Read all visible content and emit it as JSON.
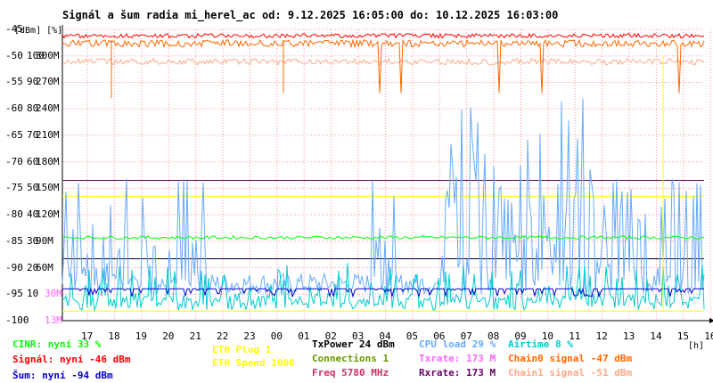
{
  "title": "Signál a šum radia mi_herel_ac od: 9.12.2025 16:05:00 do: 10.12.2025 16:03:00",
  "axis": {
    "unit_label": "[dBm] [%]",
    "y_labels_dbm": [
      "-45",
      "-50",
      "-55",
      "-60",
      "-65",
      "-70",
      "-75",
      "-80",
      "-85",
      "-90",
      "-95",
      "-100"
    ],
    "y_labels_pct": [
      "100",
      "90",
      "80",
      "70",
      "60",
      "50",
      "40",
      "30",
      "20",
      "10"
    ],
    "y_labels_rate": [
      "300M",
      "270M",
      "240M",
      "210M",
      "180M",
      "150M",
      "120M",
      "90M",
      "60M",
      "30M",
      "13M",
      "6M"
    ],
    "x_labels": [
      "17",
      "18",
      "19",
      "20",
      "21",
      "22",
      "23",
      "00",
      "01",
      "02",
      "03",
      "04",
      "05",
      "06",
      "07",
      "08",
      "09",
      "10",
      "11",
      "12",
      "13",
      "14",
      "15",
      "16"
    ],
    "x_unit": "[h]"
  },
  "legend": {
    "cinr": "CINR: nyní 33 %",
    "signal": "Signál: nyní -46 dBm",
    "noise": "Šum: nyní -94 dBm",
    "eth_plug": "ETH Plug 1",
    "eth_speed": "ETH Speed 1000",
    "txpower": "TxPower 24 dBm",
    "connections": "Connections 1",
    "freq": "Freq 5780 MHz",
    "cpu": "CPU load 29 %",
    "txrate": "Txrate: 173 M",
    "rxrate": "Rxrate: 173 M",
    "airtime": "Airtime 8 %",
    "chain0": "Chain0 signal -47 dBm",
    "chain1": "Chain1 signal -51 dBm"
  },
  "colors": {
    "cinr": "#00ff00",
    "signal": "#ff0000",
    "noise": "#0000cc",
    "eth": "#ffff00",
    "txpower": "#000000",
    "connections": "#669900",
    "freq": "#cc3366",
    "cpu": "#66aaff",
    "txrate": "#ff66ff",
    "rxrate": "#660066",
    "airtime": "#00cccc",
    "chain0": "#ff6600",
    "chain1": "#ffaa88"
  },
  "chart_data": {
    "type": "line",
    "x": [
      "17",
      "18",
      "19",
      "20",
      "21",
      "22",
      "23",
      "00",
      "01",
      "02",
      "03",
      "04",
      "05",
      "06",
      "07",
      "08",
      "09",
      "10",
      "11",
      "12",
      "13",
      "14",
      "15",
      "16"
    ],
    "ylim": [
      -100,
      -45
    ],
    "series": [
      {
        "name": "Signál",
        "values": [
          -46,
          -46,
          -46,
          -46,
          -46,
          -46,
          -46,
          -46,
          -46,
          -46,
          -46,
          -46,
          -46,
          -46,
          -46,
          -46,
          -46,
          -46,
          -46,
          -46,
          -46,
          -46,
          -46,
          -46
        ]
      },
      {
        "name": "Šum",
        "values": [
          -94,
          -94,
          -94,
          -94,
          -94,
          -94,
          -94,
          -94,
          -94,
          -94,
          -94,
          -94,
          -94,
          -94,
          -94,
          -94,
          -94,
          -94,
          -94,
          -94,
          -94,
          -94,
          -94,
          -94
        ]
      },
      {
        "name": "Chain0 signal",
        "values": [
          -47,
          -47,
          -47,
          -47,
          -47,
          -47,
          -47,
          -47,
          -47,
          -47,
          -47,
          -47,
          -47,
          -47,
          -47,
          -47,
          -47,
          -47,
          -47,
          -47,
          -47,
          -47,
          -47,
          -47
        ]
      },
      {
        "name": "Chain1 signal",
        "values": [
          -51,
          -51,
          -51,
          -51,
          -51,
          -51,
          -51,
          -51,
          -51,
          -51,
          -51,
          -51,
          -51,
          -51,
          -51,
          -51,
          -51,
          -51,
          -51,
          -51,
          -51,
          -51,
          -51,
          -51
        ]
      }
    ]
  }
}
